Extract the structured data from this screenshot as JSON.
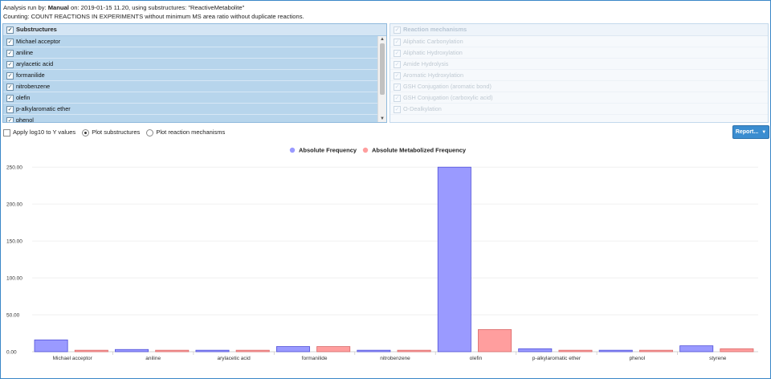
{
  "info": {
    "line1_prefix": "Analysis run by: ",
    "user": "Manual",
    "line1_suffix": " on: 2019-01-15 11.20, using substructures: \"ReactiveMetabolite\"",
    "line2": "Counting: COUNT REACTIONS IN EXPERIMENTS without minimum MS area ratio without duplicate reactions."
  },
  "substructures": {
    "header": "Substructures",
    "items": [
      "Michael acceptor",
      "aniline",
      "arylacetic acid",
      "formanilide",
      "nitrobenzene",
      "olefin",
      "p-alkylaromatic ether",
      "phenol"
    ]
  },
  "mechanisms": {
    "header": "Reaction mechanisms",
    "items": [
      "Aliphatic Carbonylation",
      "Aliphatic Hydroxylation",
      "Amide Hydrolysis",
      "Aromatic Hydroxylation",
      "GSH Conjugation (aromatic bond)",
      "GSH Conjugation (carboxylic acid)",
      "O-Dealkylation"
    ]
  },
  "options": {
    "log10_label": "Apply log10 to Y values",
    "plot_substructures_label": "Plot substructures",
    "plot_mechanisms_label": "Plot reaction mechanisms",
    "selected": "Plot substructures"
  },
  "report_button": {
    "label": "Report..."
  },
  "colors": {
    "series1": "#9a9aff",
    "series1_border": "#5050d8",
    "series2": "#ff9e9e",
    "series2_border": "#d86a6a",
    "accent": "#3b8dd0"
  },
  "chart_data": {
    "type": "bar",
    "categories": [
      "Michael acceptor",
      "aniline",
      "arylacetic acid",
      "formanilide",
      "nitrobenzene",
      "olefin",
      "p-alkylaromatic ether",
      "phenol",
      "styrene"
    ],
    "series": [
      {
        "name": "Absolute Frequency",
        "values": [
          16,
          3,
          2,
          7,
          2,
          250,
          4,
          2,
          8
        ]
      },
      {
        "name": "Absolute Metabolized Frequency",
        "values": [
          2,
          2,
          2,
          7,
          2,
          30,
          2,
          2,
          4
        ]
      }
    ],
    "yticks": [
      "0.00",
      "50.00",
      "100.00",
      "150.00",
      "200.00",
      "250.00"
    ],
    "ylim": [
      0,
      260
    ],
    "legend_position": "top-center",
    "grid": true
  }
}
